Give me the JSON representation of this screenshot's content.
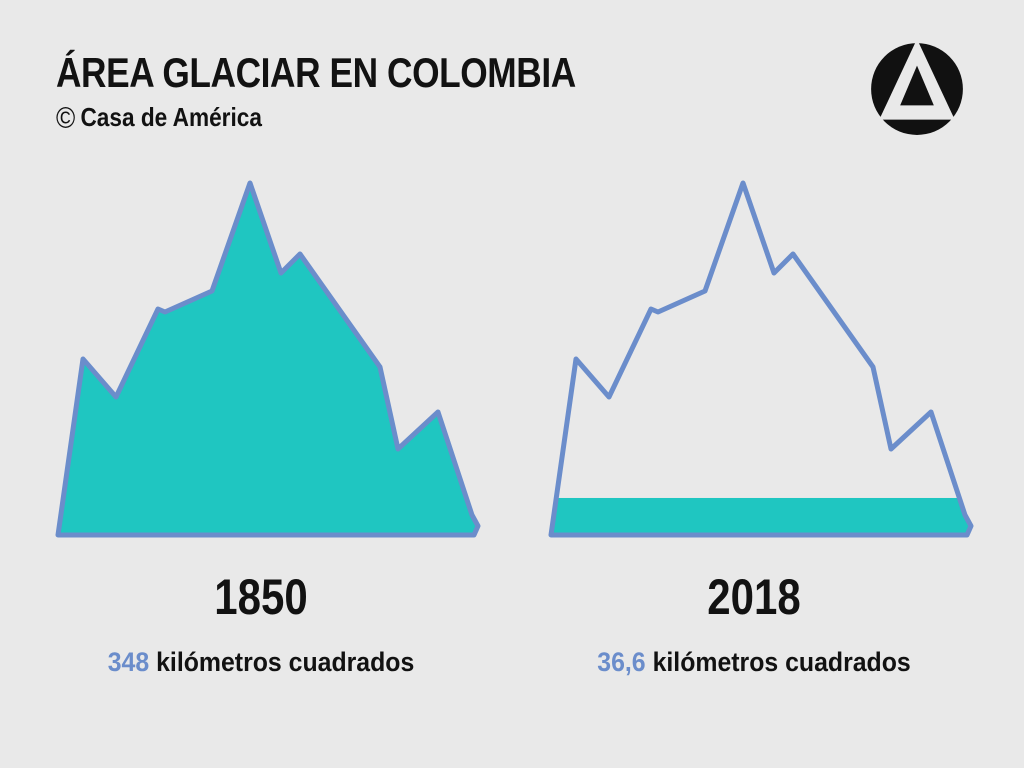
{
  "header": {
    "title": "ÁREA GLACIAR EN COLOMBIA",
    "credit": {
      "symbol": "©",
      "text": "Casa de América"
    }
  },
  "icons": {
    "logo": "black-circle-with-letter-A-monogram"
  },
  "colors": {
    "background": "#E9E9E9",
    "glacier_fill": "#1FC6C1",
    "outline": "#6B8DCB",
    "text": "#121212",
    "accent_number": "#6B8DCB"
  },
  "figures": [
    {
      "year": "1850",
      "value": "348",
      "unit": "kilómetros cuadrados"
    },
    {
      "year": "2018",
      "value": "36,6",
      "unit": "kilómetros cuadrados"
    }
  ],
  "chart_data": {
    "type": "area",
    "variant": "pictorial mountain silhouettes; fill level encodes glacier area",
    "title": "ÁREA GLACIAR EN COLOMBIA",
    "source": "© Casa de América",
    "categories": [
      "1850",
      "2018"
    ],
    "values": [
      348,
      36.6
    ],
    "value_labels": [
      "348",
      "36,6"
    ],
    "unit": "kilómetros cuadrados",
    "fill_fractions": [
      1.0,
      0.105
    ],
    "xlabel": "",
    "ylabel": "",
    "axes": "none",
    "grid": false,
    "legend": "none"
  }
}
